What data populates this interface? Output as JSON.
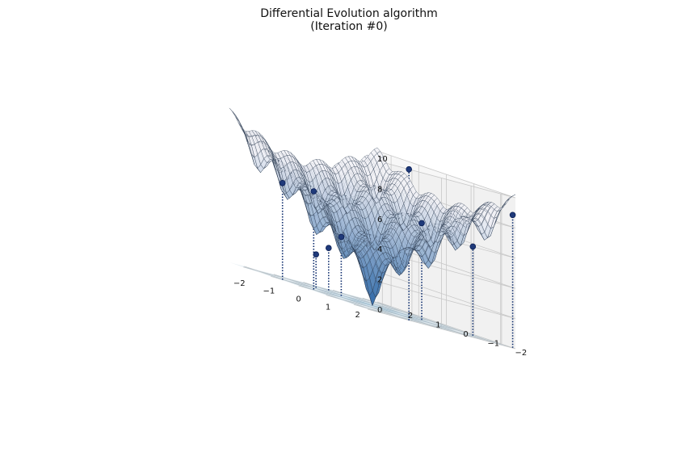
{
  "title_line1": "Differential Evolution algorithm",
  "title_line2": "(Iteration #0)",
  "chart_data": {
    "type": "surface3d",
    "function": "Ackley",
    "title": "Differential Evolution algorithm\n(Iteration #0)",
    "xlim": [
      -2.5,
      2.5
    ],
    "ylim": [
      -2.5,
      2.5
    ],
    "zlim": [
      0,
      10
    ],
    "xticks": [
      "2",
      "1",
      "0",
      "−1",
      "−2"
    ],
    "yticks": [
      "−2",
      "−1",
      "0",
      "1",
      "2"
    ],
    "zticks": [
      "0",
      "2",
      "4",
      "6",
      "8",
      "10"
    ],
    "grid": true,
    "surface_colormap": "Blues",
    "population": [
      {
        "x": 2.5,
        "y": -2.4,
        "z": 8.8
      },
      {
        "x": 1.9,
        "y": -1.6,
        "z": 5.9
      },
      {
        "x": 1.2,
        "y": -0.5,
        "z": 6.4
      },
      {
        "x": -1.1,
        "y": -2.5,
        "z": 10.0
      },
      {
        "x": -0.4,
        "y": 0.7,
        "z": 3.9
      },
      {
        "x": -0.6,
        "y": 1.4,
        "z": 2.2
      },
      {
        "x": -1.8,
        "y": 0.2,
        "z": 6.5
      },
      {
        "x": -2.2,
        "y": 0.9,
        "z": 6.4
      },
      {
        "x": 0.2,
        "y": 1.8,
        "z": 2.8
      }
    ]
  }
}
